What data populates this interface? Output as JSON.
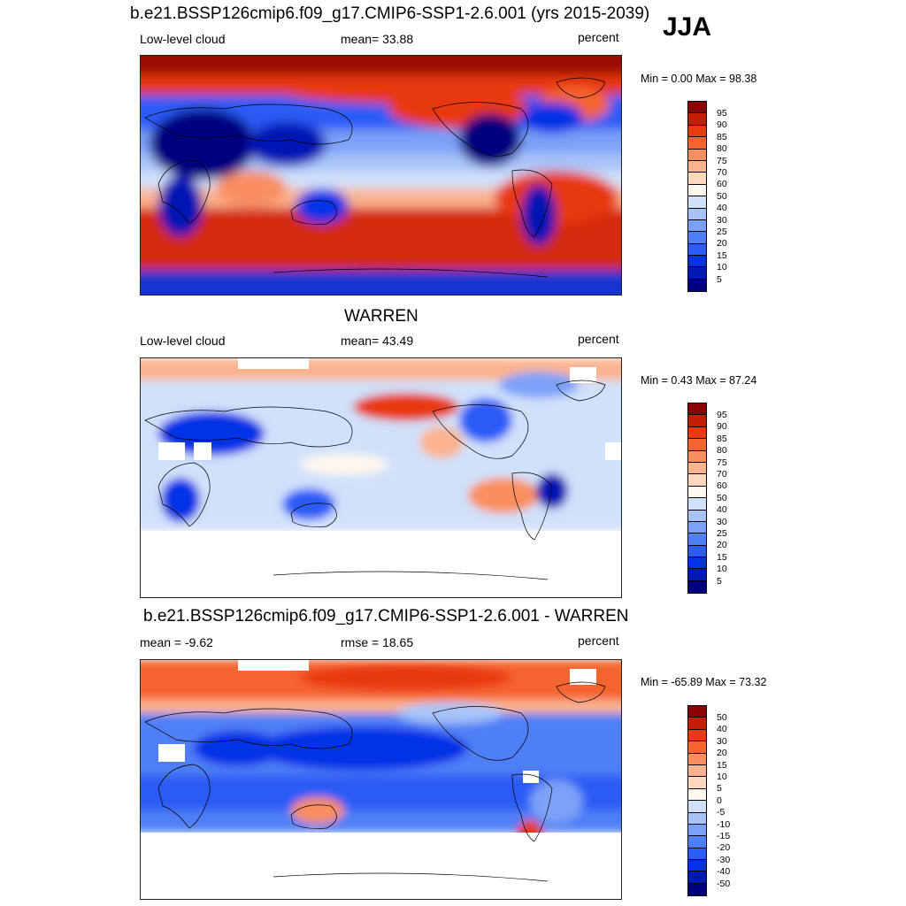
{
  "season": "JJA",
  "palette": [
    "#00007f",
    "#0019b3",
    "#0033e6",
    "#2b5cf5",
    "#4f7ff6",
    "#7ba1f7",
    "#a7c3f8",
    "#d0e1fb",
    "#fff8ee",
    "#fdd7bf",
    "#fbb38f",
    "#f98e5f",
    "#f5642f",
    "#e8390f",
    "#c41f06",
    "#8b0000"
  ],
  "coastline_color": "#000000",
  "panels": [
    {
      "title": "b.e21.BSSP126cmip6.f09_g17.CMIP6-SSP1-2.6.001 (yrs 2015-2039)",
      "left_label": "Low-level cloud",
      "center_label": "mean=  33.88",
      "right_label": "percent",
      "minmax": "Min =    0.00 Max =  98.38",
      "levels": [
        "95",
        "90",
        "85",
        "80",
        "75",
        "70",
        "60",
        "50",
        "40",
        "30",
        "25",
        "20",
        "15",
        "10",
        "5"
      ]
    },
    {
      "title": "WARREN",
      "left_label": "Low-level cloud",
      "center_label": "mean=  43.49",
      "right_label": "percent",
      "minmax": "Min =   0.43 Max =  87.24",
      "levels": [
        "95",
        "90",
        "85",
        "80",
        "75",
        "70",
        "60",
        "50",
        "40",
        "30",
        "25",
        "20",
        "15",
        "10",
        "5"
      ]
    },
    {
      "title": "b.e21.BSSP126cmip6.f09_g17.CMIP6-SSP1-2.6.001 - WARREN",
      "left_label": "mean =  -9.62",
      "center_label": "rmse =  18.65",
      "right_label": "percent",
      "minmax": "Min = -65.89 Max =  73.32",
      "levels": [
        "50",
        "40",
        "30",
        "20",
        "15",
        "10",
        "5",
        "0",
        "-5",
        "-10",
        "-15",
        "-20",
        "-30",
        "-40",
        "-50"
      ]
    }
  ]
}
